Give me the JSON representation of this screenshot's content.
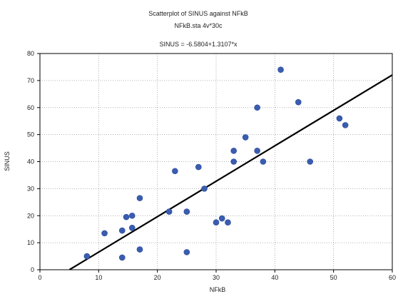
{
  "chart_data": {
    "type": "scatter",
    "title": "Scatterplot of SINUS against NFkB",
    "subtitle": "NFkB.sta 4v*30c",
    "equation": "SINUS = -6.5804+1.3107*x",
    "xlabel": "NFkB",
    "ylabel": "SINUS",
    "xlim": [
      0,
      60
    ],
    "ylim": [
      0,
      80
    ],
    "x_ticks": [
      0,
      10,
      20,
      30,
      40,
      50,
      60
    ],
    "y_ticks": [
      0,
      10,
      20,
      30,
      40,
      50,
      60,
      70,
      80
    ],
    "grid": true,
    "regression": {
      "intercept": -6.5804,
      "slope": 1.3107
    },
    "points": [
      {
        "x": 8,
        "y": 5
      },
      {
        "x": 11,
        "y": 13.5
      },
      {
        "x": 14,
        "y": 4.5
      },
      {
        "x": 14,
        "y": 14.5
      },
      {
        "x": 14.7,
        "y": 19.5
      },
      {
        "x": 15.7,
        "y": 20
      },
      {
        "x": 15.7,
        "y": 15.5
      },
      {
        "x": 17,
        "y": 7.5
      },
      {
        "x": 17,
        "y": 26.5
      },
      {
        "x": 22,
        "y": 21.5
      },
      {
        "x": 23,
        "y": 36.5
      },
      {
        "x": 25,
        "y": 6.5
      },
      {
        "x": 25,
        "y": 21.5
      },
      {
        "x": 27,
        "y": 38
      },
      {
        "x": 28,
        "y": 30
      },
      {
        "x": 30,
        "y": 17.5
      },
      {
        "x": 31,
        "y": 19
      },
      {
        "x": 32,
        "y": 17.5
      },
      {
        "x": 33,
        "y": 40
      },
      {
        "x": 33,
        "y": 44
      },
      {
        "x": 35,
        "y": 49
      },
      {
        "x": 37,
        "y": 44
      },
      {
        "x": 37,
        "y": 60
      },
      {
        "x": 38,
        "y": 40
      },
      {
        "x": 41,
        "y": 74
      },
      {
        "x": 44,
        "y": 62
      },
      {
        "x": 46,
        "y": 40
      },
      {
        "x": 51,
        "y": 56
      },
      {
        "x": 52,
        "y": 53.5
      }
    ],
    "colors": {
      "marker": "#3a5db0",
      "line": "#000000",
      "grid": "#9a9a9a",
      "axis": "#000000"
    }
  }
}
